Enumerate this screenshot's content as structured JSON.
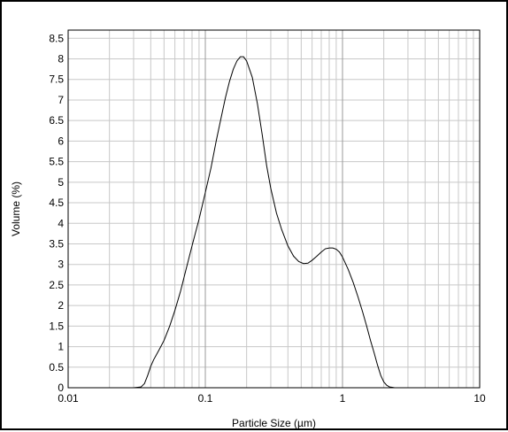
{
  "chart_data": {
    "type": "line",
    "title": "",
    "xlabel": "Particle Size (µm)",
    "ylabel": "Volume (%)",
    "x_scale": "log",
    "xlim": [
      0.01,
      10
    ],
    "ylim": [
      0,
      8.7
    ],
    "x_ticks": [
      0.01,
      0.1,
      1,
      10
    ],
    "x_tick_labels": [
      "0.01",
      "0.1",
      "1",
      "10"
    ],
    "y_ticks": [
      0,
      0.5,
      1,
      1.5,
      2,
      2.5,
      3,
      3.5,
      4,
      4.5,
      5,
      5.5,
      6,
      6.5,
      7,
      7.5,
      8,
      8.5
    ],
    "y_tick_labels": [
      "0",
      "0.5",
      "1",
      "1.5",
      "2",
      "2.5",
      "3",
      "3.5",
      "4",
      "4.5",
      "5",
      "5.5",
      "6",
      "6.5",
      "7",
      "7.5",
      "8",
      "8.5"
    ],
    "grid": true,
    "line_color": "#000000",
    "grid_color": "#c8c8c8",
    "series": [
      {
        "x": [
          0.02,
          0.03,
          0.034,
          0.036,
          0.038,
          0.04,
          0.042,
          0.046,
          0.05,
          0.055,
          0.06,
          0.066,
          0.072,
          0.08,
          0.09,
          0.1,
          0.11,
          0.12,
          0.13,
          0.14,
          0.15,
          0.16,
          0.17,
          0.18,
          0.19,
          0.2,
          0.22,
          0.24,
          0.26,
          0.28,
          0.3,
          0.33,
          0.36,
          0.4,
          0.44,
          0.48,
          0.52,
          0.56,
          0.6,
          0.65,
          0.7,
          0.75,
          0.8,
          0.85,
          0.9,
          0.95,
          1.0,
          1.1,
          1.2,
          1.3,
          1.4,
          1.5,
          1.6,
          1.7,
          1.8,
          1.9,
          2.0,
          2.1,
          2.2,
          2.3,
          2.4,
          2.6,
          3.0,
          5.0,
          10.0
        ],
        "y": [
          0,
          0,
          0.02,
          0.1,
          0.3,
          0.52,
          0.68,
          0.92,
          1.15,
          1.5,
          1.88,
          2.35,
          2.85,
          3.45,
          4.1,
          4.75,
          5.35,
          6.0,
          6.55,
          7.05,
          7.45,
          7.75,
          7.95,
          8.05,
          8.05,
          7.95,
          7.55,
          6.9,
          6.15,
          5.4,
          4.85,
          4.25,
          3.85,
          3.45,
          3.2,
          3.07,
          3.02,
          3.03,
          3.1,
          3.2,
          3.3,
          3.38,
          3.4,
          3.4,
          3.37,
          3.3,
          3.18,
          2.88,
          2.55,
          2.2,
          1.85,
          1.5,
          1.15,
          0.85,
          0.55,
          0.3,
          0.14,
          0.06,
          0.02,
          0.01,
          0,
          0,
          0,
          0,
          0
        ]
      }
    ]
  }
}
